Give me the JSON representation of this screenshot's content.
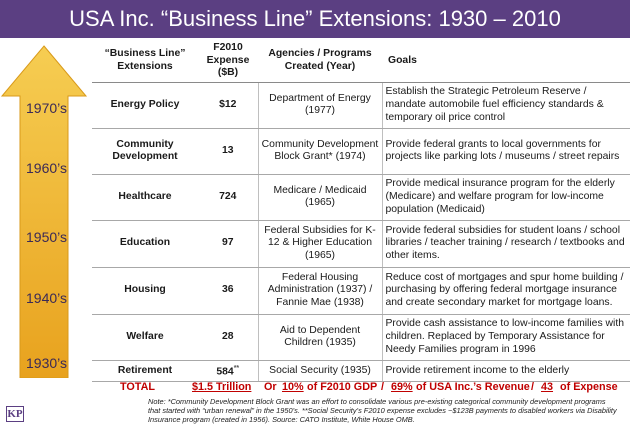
{
  "title": "USA Inc. “Business Line” Extensions: 1930 – 2010",
  "arrow": {
    "colors": {
      "top": "#f6cd52",
      "bottom": "#e8a21e"
    },
    "decades": [
      "1970’s",
      "1960’s",
      "1950’s",
      "1940’s",
      "1930’s"
    ]
  },
  "table": {
    "headers": {
      "extension": "“Business Line” Extensions",
      "expense": "F2010 Expense ($B)",
      "agency": "Agencies / Programs Created (Year)",
      "goals": "Goals"
    },
    "rows": [
      {
        "extension": "Energy Policy",
        "expense": "$12",
        "mark": "",
        "agency": "Department of Energy (1977)",
        "goals": "Establish the Strategic Petroleum Reserve / mandate automobile fuel efficiency standards & temporary oil price control"
      },
      {
        "extension": "Community Development",
        "expense": "13",
        "mark": "",
        "agency": "Community Development Block Grant* (1974)",
        "goals": "Provide federal grants to local governments for projects like parking lots / museums / street repairs"
      },
      {
        "extension": "Healthcare",
        "expense": "724",
        "mark": "",
        "agency": "Medicare / Medicaid (1965)",
        "goals": "Provide medical insurance program for the elderly (Medicare) and welfare program for low-income population (Medicaid)"
      },
      {
        "extension": "Education",
        "expense": "97",
        "mark": "",
        "agency": "Federal Subsidies for K-12 & Higher Education (1965)",
        "goals": "Provide federal subsidies for student loans / school libraries / teacher training / research / textbooks and other items."
      },
      {
        "extension": "Housing",
        "expense": "36",
        "mark": "",
        "agency": "Federal Housing Administration (1937) / Fannie Mae (1938)",
        "goals": "Reduce cost of mortgages and spur home building / purchasing by offering federal mortgage insurance and create secondary market for mortgage loans."
      },
      {
        "extension": "Welfare",
        "expense": "28",
        "mark": "",
        "agency": "Aid to Dependent Children (1935)",
        "goals": "Provide cash assistance to low-income families with children. Replaced by Temporary Assistance for Needy Families program in 1996"
      },
      {
        "extension": "Retirement",
        "expense": "584",
        "mark": "**",
        "agency": "Social Security (1935)",
        "goals": "Provide retirement income to the elderly"
      }
    ]
  },
  "total": {
    "label": "TOTAL",
    "amount": "$1.5 Trillion",
    "gdp_prefix": "Or",
    "gdp_pct": "10%",
    "gdp_suffix": "of F2010 GDP",
    "sep1": "/",
    "rev_pct": "69%",
    "rev_suffix": "of USA Inc.’s Revenue",
    "sep2": "/",
    "exp_count": "43",
    "exp_suffix": "of Expense"
  },
  "note": "Note: *Community Development Block Grant was an effort to consolidate various pre-existing categorical community development programs that started with “urban renewal” in the 1950’s. **Social Security’s F2010 expense excludes ~$123B payments to disabled workers via Disability Insurance program (created in 1956). Source: CATO Institute, White House OMB.",
  "logo": "KP",
  "colors": {
    "title_bar": "#5b3f82",
    "total_text": "#c00000"
  }
}
